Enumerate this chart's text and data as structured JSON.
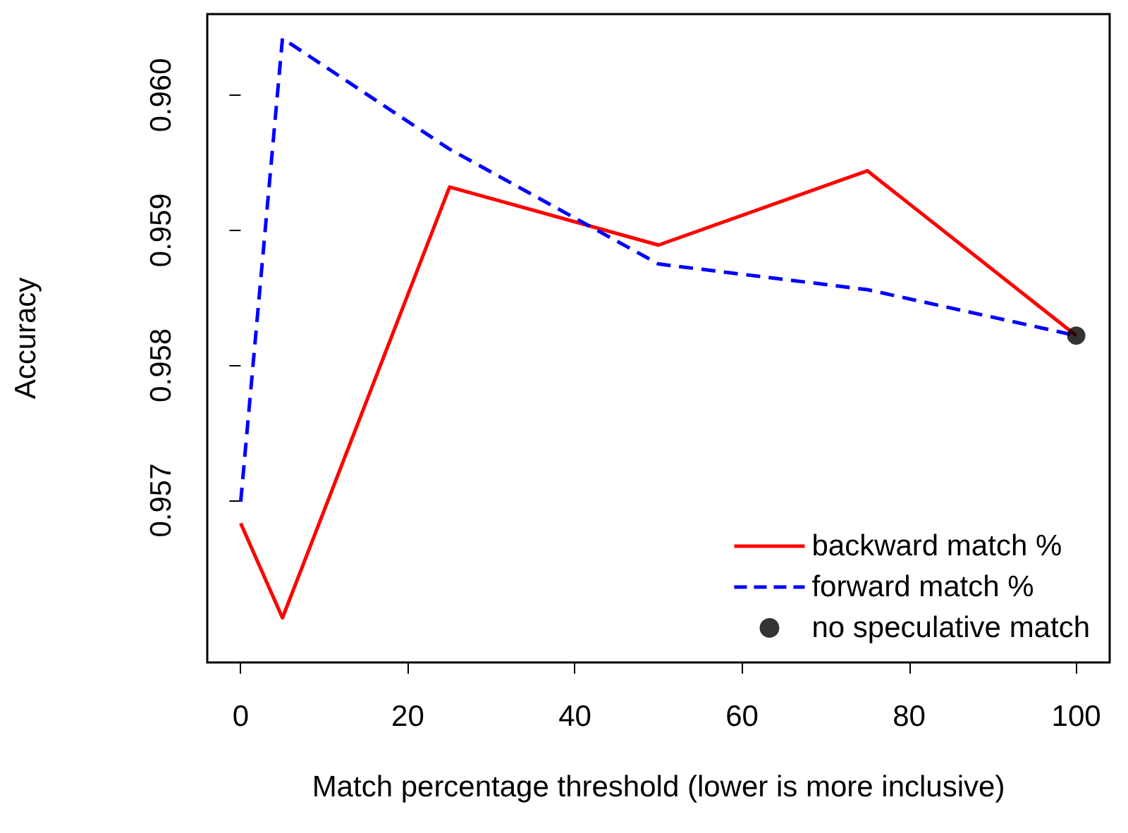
{
  "chart_data": {
    "type": "line",
    "xlabel": "Match percentage threshold (lower is more inclusive)",
    "ylabel": "Accuracy",
    "xlim": [
      -4,
      104
    ],
    "xticks": [
      0,
      20,
      40,
      60,
      80,
      100
    ],
    "ylim": [
      0.9558,
      0.9606
    ],
    "yticks": [
      {
        "value": 0.957,
        "label": "0.957"
      },
      {
        "value": 0.958,
        "label": "0.958"
      },
      {
        "value": 0.959,
        "label": "0.959"
      },
      {
        "value": 0.96,
        "label": "0.960"
      }
    ],
    "grid": false,
    "legend": "bottom right",
    "marker": "none",
    "series": [
      {
        "name": "backward match %",
        "color": "#ff0000",
        "x": [
          0,
          5,
          25,
          50,
          75,
          100
        ],
        "values": [
          0.95683,
          0.95613,
          0.95932,
          0.95889,
          0.95944,
          0.95822
        ],
        "line_style": "solid"
      },
      {
        "name": "forward match %",
        "color": "#0000ff",
        "x": [
          0,
          5,
          25,
          50,
          75,
          100
        ],
        "values": [
          0.95699,
          0.96042,
          0.9596,
          0.95875,
          0.95856,
          0.95822
        ],
        "line_style": "dashed"
      },
      {
        "name": "no speculative match",
        "type": "scatter",
        "color": "#000000",
        "x": [
          100
        ],
        "values": [
          0.95822
        ],
        "marker": "circle"
      }
    ]
  }
}
